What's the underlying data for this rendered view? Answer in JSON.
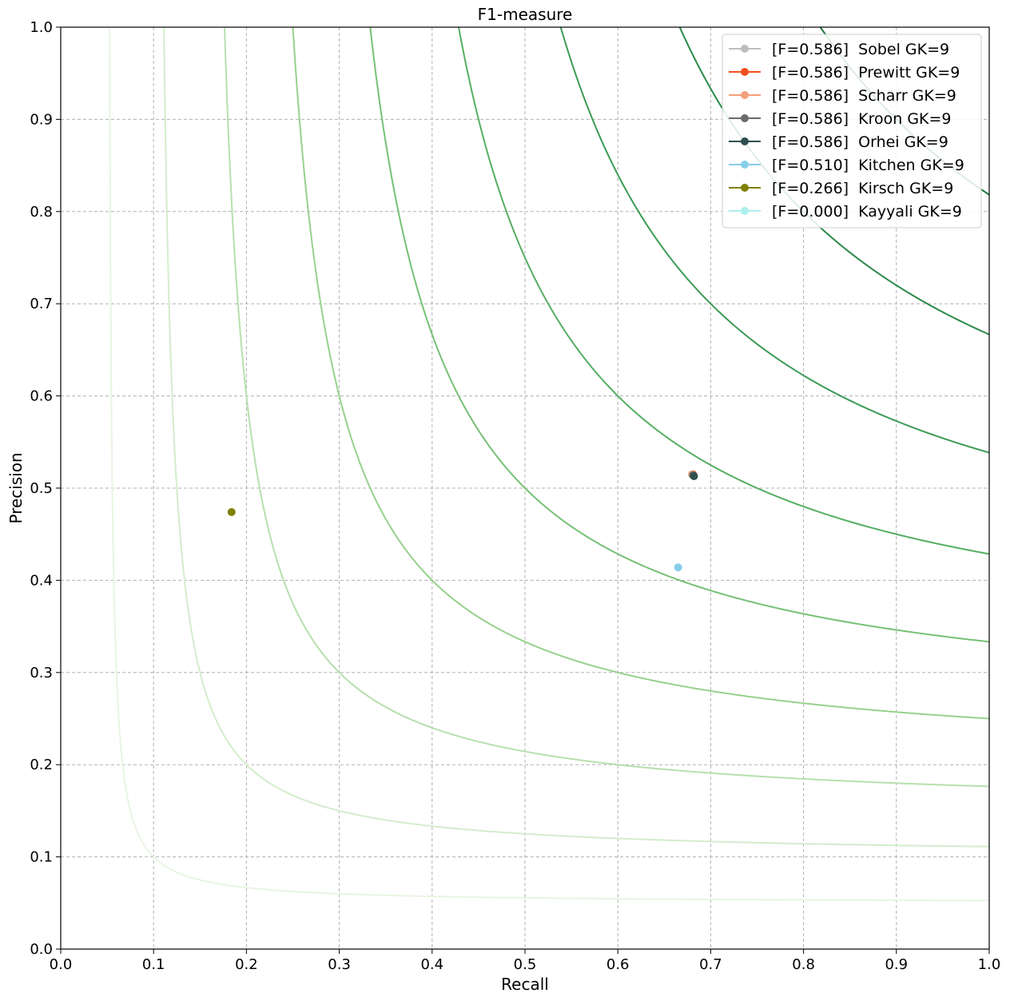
{
  "chart_data": {
    "type": "scatter",
    "title": "F1-measure",
    "xlabel": "Recall",
    "ylabel": "Precision",
    "xlim": [
      0,
      1
    ],
    "ylim": [
      0,
      1
    ],
    "x_ticks": [
      "0.0",
      "0.1",
      "0.2",
      "0.3",
      "0.4",
      "0.5",
      "0.6",
      "0.7",
      "0.8",
      "0.9",
      "1.0"
    ],
    "y_ticks": [
      "0.0",
      "0.1",
      "0.2",
      "0.3",
      "0.4",
      "0.5",
      "0.6",
      "0.7",
      "0.8",
      "0.9",
      "1.0"
    ],
    "grid": true,
    "legend_position": "top-right",
    "iso_f1_curves": [
      {
        "f": 0.1,
        "color": "#e8f5e3"
      },
      {
        "f": 0.2,
        "color": "#d3edcc"
      },
      {
        "f": 0.3,
        "color": "#b5e0ac"
      },
      {
        "f": 0.4,
        "color": "#97d18d"
      },
      {
        "f": 0.5,
        "color": "#76c175"
      },
      {
        "f": 0.6,
        "color": "#55ae62"
      },
      {
        "f": 0.7,
        "color": "#3b9b55"
      },
      {
        "f": 0.8,
        "color": "#2a8a49"
      },
      {
        "f": 0.9,
        "color": "#1a7a3e"
      }
    ],
    "series": [
      {
        "name": "[F=0.586]  Sobel GK=9",
        "recall": 0.681,
        "precision": 0.514,
        "color": "#bdbdbd"
      },
      {
        "name": "[F=0.586]  Prewitt GK=9",
        "recall": 0.681,
        "precision": 0.515,
        "color": "#f0501e"
      },
      {
        "name": "[F=0.586]  Scharr GK=9",
        "recall": 0.68,
        "precision": 0.515,
        "color": "#f5a07a"
      },
      {
        "name": "[F=0.586]  Kroon GK=9",
        "recall": 0.681,
        "precision": 0.514,
        "color": "#6b6b6b"
      },
      {
        "name": "[F=0.586]  Orhei GK=9",
        "recall": 0.682,
        "precision": 0.513,
        "color": "#2f4f4f"
      },
      {
        "name": "[F=0.510]  Kitchen GK=9",
        "recall": 0.665,
        "precision": 0.414,
        "color": "#87ceeb"
      },
      {
        "name": "[F=0.266]  Kirsch GK=9",
        "recall": 0.184,
        "precision": 0.474,
        "color": "#808000"
      },
      {
        "name": "[F=0.000]  Kayyali GK=9",
        "recall": null,
        "precision": null,
        "color": "#aeeeee"
      }
    ]
  }
}
